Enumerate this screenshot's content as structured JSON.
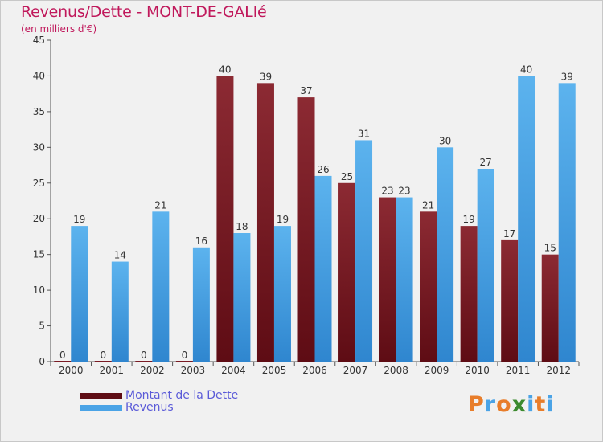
{
  "chart_data": {
    "type": "bar",
    "title": "Revenus/Dette - MONT-DE-GALIé",
    "subtitle": "(en milliers d'€)",
    "categories": [
      "2000",
      "2001",
      "2002",
      "2003",
      "2004",
      "2005",
      "2006",
      "2007",
      "2008",
      "2009",
      "2010",
      "2011",
      "2012"
    ],
    "series": [
      {
        "name": "Montant de la Dette",
        "color": "#7a1a24",
        "values": [
          0,
          0,
          0,
          0,
          40,
          39,
          37,
          25,
          23,
          21,
          19,
          17,
          15
        ]
      },
      {
        "name": "Revenus",
        "color": "#4aa3e6",
        "values": [
          19,
          14,
          21,
          16,
          18,
          19,
          26,
          31,
          23,
          30,
          27,
          40,
          39
        ]
      }
    ],
    "ylim": [
      0,
      45
    ],
    "yticks": [
      0,
      5,
      10,
      15,
      20,
      25,
      30,
      35,
      40,
      45
    ],
    "grid": false,
    "legend": "bottom-left"
  },
  "branding": {
    "letters": [
      "P",
      "r",
      "o",
      "x",
      "i",
      "t",
      "i"
    ],
    "colors": [
      "#e87d2a",
      "#4aa3e6",
      "#e87d2a",
      "#3c8a2e",
      "#4aa3e6",
      "#e87d2a",
      "#4aa3e6"
    ]
  }
}
